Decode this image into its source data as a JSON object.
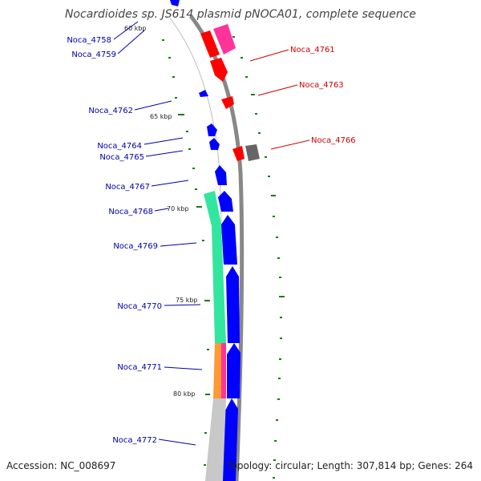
{
  "title": "Nocardioides sp. JS614 plasmid pNOCA01, complete sequence",
  "footer": {
    "accession": "Accession: NC_008697",
    "summary": "Topology: circular; Length: 307,814 bp; Genes: 264"
  },
  "colors": {
    "forward_label": "#cc0000",
    "reverse_label": "#0000aa",
    "forward_gene": "#ff0000",
    "forward_gene_alt": "#ff3399",
    "reverse_gene": "#0000ff",
    "backbone": "#888888",
    "gc_tick": "#1a7a1a",
    "feature_teal": "#33e6a0",
    "feature_orange": "#ff9933",
    "feature_gray": "#c8c8c8",
    "gene_gray": "#666666"
  },
  "ticks": [
    {
      "label": "60 kbp"
    },
    {
      "label": "65 kbp"
    },
    {
      "label": "70 kbp"
    },
    {
      "label": "75 kbp"
    },
    {
      "label": "80 kbp"
    }
  ],
  "gene_labels": {
    "reverse": [
      {
        "name": "Noca_4758"
      },
      {
        "name": "Noca_4759"
      },
      {
        "name": "Noca_4762"
      },
      {
        "name": "Noca_4764"
      },
      {
        "name": "Noca_4765"
      },
      {
        "name": "Noca_4767"
      },
      {
        "name": "Noca_4768"
      },
      {
        "name": "Noca_4769"
      },
      {
        "name": "Noca_4770"
      },
      {
        "name": "Noca_4771"
      },
      {
        "name": "Noca_4772"
      }
    ],
    "forward": [
      {
        "name": "Noca_4761"
      },
      {
        "name": "Noca_4763"
      },
      {
        "name": "Noca_4766"
      }
    ]
  }
}
